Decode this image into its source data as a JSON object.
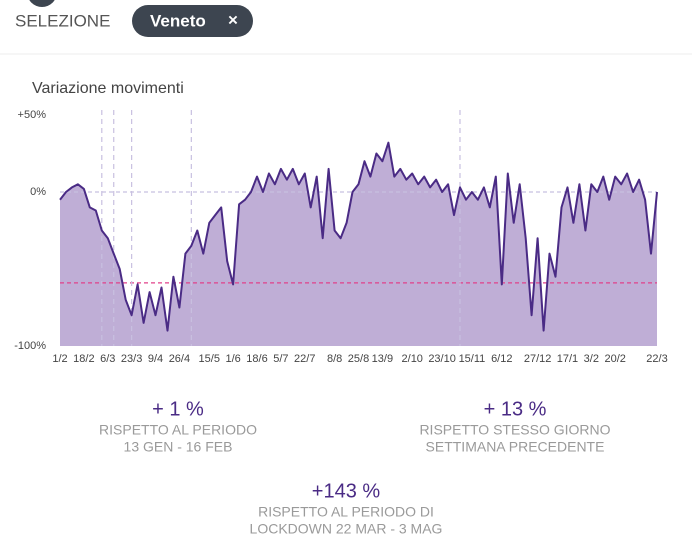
{
  "header": {
    "label": "SELEZIONE",
    "chip": "Veneto",
    "chip_close": "×"
  },
  "chart_data": {
    "type": "area",
    "title": "Variazione movimenti",
    "categories": [
      "1/2",
      null,
      null,
      null,
      "18/2",
      null,
      null,
      null,
      "6/3",
      null,
      null,
      null,
      "23/3",
      null,
      null,
      null,
      "9/4",
      null,
      null,
      null,
      "26/4",
      null,
      null,
      null,
      null,
      "15/5",
      null,
      null,
      null,
      "1/6",
      null,
      null,
      null,
      "18/6",
      null,
      null,
      null,
      "5/7",
      null,
      null,
      null,
      "22/7",
      null,
      null,
      null,
      null,
      "8/8",
      null,
      null,
      null,
      "25/8",
      null,
      null,
      null,
      "13/9",
      null,
      null,
      null,
      null,
      "2/10",
      null,
      null,
      null,
      null,
      "23/10",
      null,
      null,
      null,
      null,
      "15/11",
      null,
      null,
      null,
      null,
      "6/12",
      null,
      null,
      null,
      null,
      null,
      "27/12",
      null,
      null,
      null,
      null,
      "17/1",
      null,
      null,
      null,
      "3/2",
      null,
      null,
      null,
      "20/2",
      null,
      null,
      null,
      null,
      null,
      null,
      "22/3"
    ],
    "series": [
      {
        "name": "Variazione movimenti",
        "color": "#4a2b85",
        "fill": "#bfaed6",
        "values": [
          -5,
          0,
          3,
          5,
          2,
          -10,
          -12,
          -25,
          -30,
          -40,
          -50,
          -70,
          -80,
          -60,
          -85,
          -65,
          -80,
          -62,
          -90,
          -55,
          -75,
          -40,
          -35,
          -25,
          -40,
          -20,
          -15,
          -10,
          -45,
          -60,
          -8,
          -5,
          0,
          10,
          0,
          12,
          5,
          15,
          8,
          15,
          5,
          12,
          -10,
          10,
          -30,
          15,
          -25,
          -30,
          -20,
          0,
          5,
          20,
          10,
          25,
          20,
          32,
          10,
          15,
          8,
          12,
          5,
          10,
          3,
          8,
          0,
          5,
          -15,
          3,
          -5,
          0,
          -5,
          3,
          -10,
          10,
          -60,
          12,
          -20,
          5,
          -30,
          -80,
          -30,
          -90,
          -40,
          -55,
          -10,
          3,
          -20,
          5,
          -25,
          5,
          0,
          10,
          -5,
          10,
          5,
          12,
          0,
          8,
          -5,
          -40,
          0
        ]
      }
    ],
    "ylim": [
      -100,
      50
    ],
    "yticks": [
      {
        "value": 50,
        "label": "+50%"
      },
      {
        "value": 0,
        "label": "0%"
      },
      {
        "value": -100,
        "label": "-100%"
      }
    ],
    "reference_lines": [
      {
        "value": 0,
        "color": "#c8c0e0"
      },
      {
        "value": -59,
        "color": "#e0408a"
      }
    ],
    "vlines": [
      7,
      9,
      12,
      22,
      67
    ],
    "grid": false
  },
  "stats": [
    {
      "value": "+ 1 %",
      "lines": [
        "RISPETTO AL PERIODO",
        "13 GEN - 16 FEB"
      ]
    },
    {
      "value": "+ 13 %",
      "lines": [
        "RISPETTO STESSO GIORNO",
        "SETTIMANA PRECEDENTE"
      ]
    },
    {
      "value": "+143 %",
      "lines": [
        "RISPETTO AL PERIODO DI",
        "LOCKDOWN 22 MAR - 3 MAG"
      ]
    }
  ]
}
